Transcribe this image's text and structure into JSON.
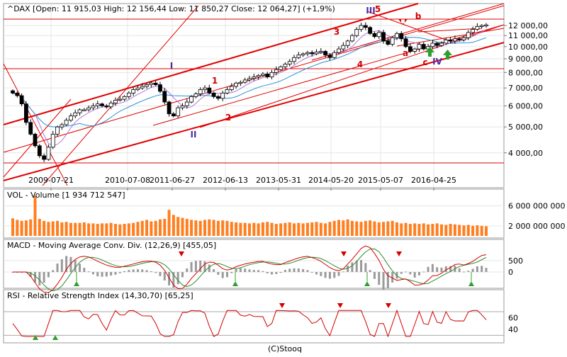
{
  "panels": {
    "price": {
      "title": "^DAX [Open: 11 915,03  High: 12 156,44  Low: 11 850,27  Close: 12 064,27] (+1,9%)",
      "y_ticks": [
        "12 000,00",
        "11 000,00",
        "10 000,00",
        "9 000,00",
        "8 000,00",
        "7 000,00",
        "6 000,00",
        "5 000,00",
        "4 000,00"
      ],
      "x_ticks": [
        "2009-07-21",
        "2010-07-08",
        "2011-06-27",
        "2012-06-13",
        "2013-05-31",
        "2014-05-20",
        "2015-05-07",
        "2016-04-25"
      ],
      "annotations": {
        "I": "I",
        "II": "II",
        "III": "III",
        "IV": "IV",
        "one": "1",
        "two": "2",
        "three": "3",
        "four": "4",
        "five": "5",
        "a": "a",
        "b": "b",
        "c": "c"
      }
    },
    "volume": {
      "title": "VOL - Volume [1 934 712 547]",
      "y_ticks": [
        "6 000 000 000",
        "2 000 000 000"
      ]
    },
    "macd": {
      "title": "MACD - Moving Average Conv. Div. (12,26,9) [455,05]",
      "y_ticks": [
        "500",
        "0"
      ]
    },
    "rsi": {
      "title": "RSI - Relative Strength Index (14,30,70) [65,25]",
      "y_ticks": [
        "60",
        "40"
      ]
    }
  },
  "footer": "(C)Stooq",
  "colors": {
    "up": "#ffffff",
    "down": "#000000",
    "trend_red": "#e00000",
    "ma_blue": "#2a8fd8",
    "ma_purple": "#b37ad8",
    "volume_bar": "#ff7f1f",
    "macd_line": "#d40000",
    "signal_line": "#2e8b2e",
    "hist": "#9a9a9a",
    "green_marker": "#2fa02f",
    "label_blue": "#4b2aa8",
    "label_red": "#d40000"
  },
  "chart_data": [
    {
      "type": "candlestick",
      "title": "^DAX [Open: 11 915,03  High: 12 156,44  Low: 11 850,27  Close: 12 064,27] (+1,9%)",
      "scale": "log",
      "ylim": [
        3600,
        12600
      ],
      "x_ticks": [
        "2009-07-21",
        "2010-07-08",
        "2011-06-27",
        "2012-06-13",
        "2013-05-31",
        "2014-05-20",
        "2015-05-07",
        "2016-04-25"
      ],
      "closes": [
        6700,
        6550,
        6100,
        5200,
        4700,
        4250,
        3900,
        3780,
        4200,
        4700,
        5000,
        5100,
        5300,
        5500,
        5650,
        5800,
        5800,
        5900,
        6000,
        6100,
        6000,
        5950,
        6150,
        6300,
        6350,
        6500,
        6700,
        6900,
        7000,
        7100,
        7200,
        7300,
        7200,
        6800,
        6200,
        5600,
        5500,
        5900,
        6000,
        6200,
        6500,
        6650,
        6900,
        7000,
        6700,
        6500,
        6400,
        6700,
        6900,
        7100,
        7300,
        7350,
        7500,
        7600,
        7700,
        7800,
        7900,
        7700,
        8000,
        8200,
        8400,
        8600,
        8800,
        9100,
        9300,
        9400,
        9500,
        9400,
        9550,
        9600,
        9300,
        9100,
        9500,
        9800,
        10100,
        10500,
        11000,
        11600,
        12000,
        11800,
        11200,
        10900,
        11300,
        10500,
        10200,
        10800,
        11200,
        10700,
        10000,
        9600,
        9800,
        10200,
        9800,
        10000,
        10300,
        10100,
        10300,
        10600,
        10500,
        10700,
        10600,
        10800,
        11300,
        11600,
        11900,
        12000,
        12064
      ],
      "wave_labels": [
        "I",
        "II",
        "III",
        "IV",
        "1",
        "2",
        "3",
        "4",
        "5",
        "a",
        "b",
        "c"
      ]
    },
    {
      "type": "bar",
      "title": "VOL - Volume [1 934 712 547]",
      "values": [
        3.5,
        3.2,
        3.0,
        3.1,
        3.3,
        8.0,
        3.4,
        3.0,
        2.8,
        2.9,
        3.0,
        2.7,
        2.8,
        2.6,
        2.6,
        2.6,
        2.7,
        2.5,
        2.5,
        2.4,
        2.5,
        2.5,
        2.6,
        2.4,
        2.3,
        2.4,
        2.5,
        2.6,
        2.8,
        3.0,
        3.2,
        2.9,
        3.0,
        3.3,
        3.4,
        5.2,
        4.2,
        3.8,
        3.6,
        3.4,
        3.2,
        3.1,
        3.0,
        3.2,
        3.3,
        3.2,
        3.0,
        3.1,
        3.0,
        2.8,
        2.7,
        2.6,
        2.6,
        2.5,
        2.6,
        2.5,
        2.7,
        2.8,
        2.6,
        2.4,
        2.5,
        2.6,
        2.7,
        2.5,
        2.6,
        2.5,
        2.6,
        2.7,
        2.8,
        2.6,
        2.5,
        2.8,
        3.0,
        3.2,
        3.1,
        3.3,
        3.0,
        2.9,
        2.8,
        3.0,
        3.1,
        2.9,
        2.7,
        2.8,
        2.9,
        3.0,
        2.7,
        2.5,
        2.6,
        2.4,
        2.5,
        2.4,
        2.5,
        2.3,
        2.4,
        2.5,
        2.3,
        2.2,
        2.4,
        2.3,
        2.2,
        2.1,
        2.2,
        2.0,
        2.1,
        2.0,
        1.93
      ],
      "ylim": [
        0,
        8.5
      ],
      "y_unit": "billion"
    },
    {
      "type": "line",
      "title": "MACD - Moving Average Conv. Div. (12,26,9) [455,05]"
    },
    {
      "type": "line",
      "title": "RSI - Relative Strength Index (14,30,70) [65,25]",
      "ylim": [
        22,
        82
      ]
    }
  ]
}
